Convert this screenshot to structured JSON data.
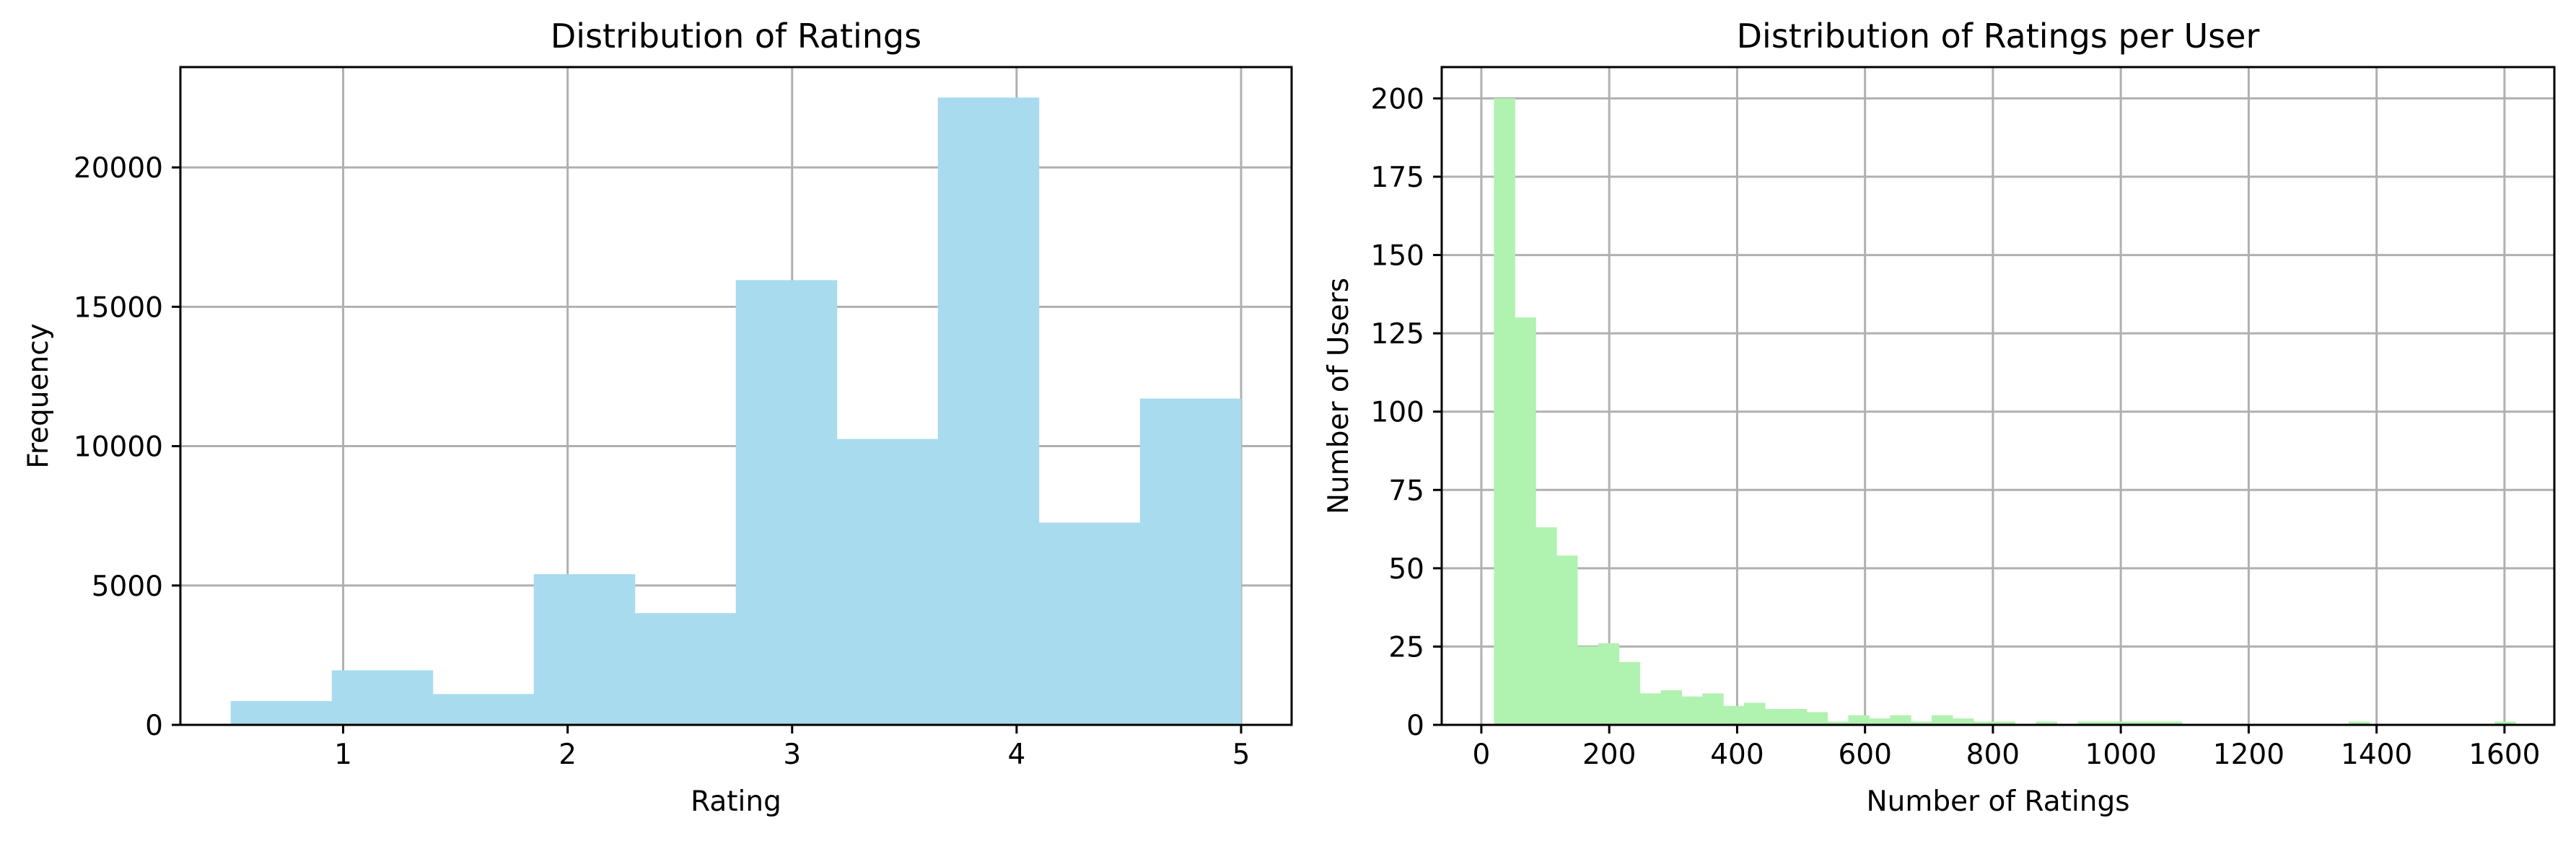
{
  "chart_data": [
    {
      "type": "bar",
      "title": "Distribution of Ratings",
      "xlabel": "Rating",
      "ylabel": "Frequency",
      "xlim": [
        0.275,
        5.225
      ],
      "ylim": [
        0,
        23600
      ],
      "xticks": [
        1,
        2,
        3,
        4,
        5
      ],
      "yticks": [
        0,
        5000,
        10000,
        15000,
        20000
      ],
      "grid": true,
      "color": "#a8dbed",
      "bin_edges": [
        0.5,
        0.95,
        1.4,
        1.85,
        2.3,
        2.75,
        3.2,
        3.65,
        4.1,
        4.55,
        5.0
      ],
      "values": [
        850,
        1950,
        1100,
        5400,
        4000,
        15950,
        10250,
        22500,
        7250,
        11700
      ]
    },
    {
      "type": "bar",
      "title": "Distribution of Ratings per User",
      "xlabel": "Number of Ratings",
      "ylabel": "Number of Users",
      "xlim": [
        -62,
        1678
      ],
      "ylim": [
        0,
        210
      ],
      "xticks": [
        0,
        200,
        400,
        600,
        800,
        1000,
        1200,
        1400,
        1600
      ],
      "yticks": [
        0,
        25,
        50,
        75,
        100,
        125,
        150,
        175,
        200
      ],
      "grid": true,
      "color": "#b0f2b0",
      "bin_edges": [
        20,
        52.6,
        85.2,
        117.8,
        150.4,
        183,
        215.6,
        248.2,
        280.8,
        313.4,
        346,
        378.6,
        411.2,
        443.8,
        476.4,
        509,
        541.6,
        574.2,
        606.8,
        639.4,
        672,
        704.6,
        737.2,
        769.8,
        802.4,
        835,
        867.6,
        900.2,
        932.8,
        965.4,
        998,
        1030.6,
        1063.2,
        1095.8,
        1128.4,
        1161,
        1193.6,
        1226.2,
        1258.8,
        1291.4,
        1324,
        1356.6,
        1389.2,
        1421.8,
        1454.4,
        1487,
        1519.6,
        1552.2,
        1584.8,
        1617.4,
        1650
      ],
      "values": [
        200,
        130,
        63,
        54,
        25,
        26,
        20,
        10,
        11,
        9,
        10,
        6,
        7,
        5,
        5,
        4,
        1,
        3,
        2,
        3,
        1,
        3,
        2,
        1,
        1,
        0,
        1,
        0,
        1,
        1,
        1,
        1,
        1,
        0,
        0,
        0,
        0,
        0,
        0,
        0,
        0,
        1,
        0,
        0,
        0,
        0,
        0,
        0,
        1,
        0
      ]
    }
  ]
}
